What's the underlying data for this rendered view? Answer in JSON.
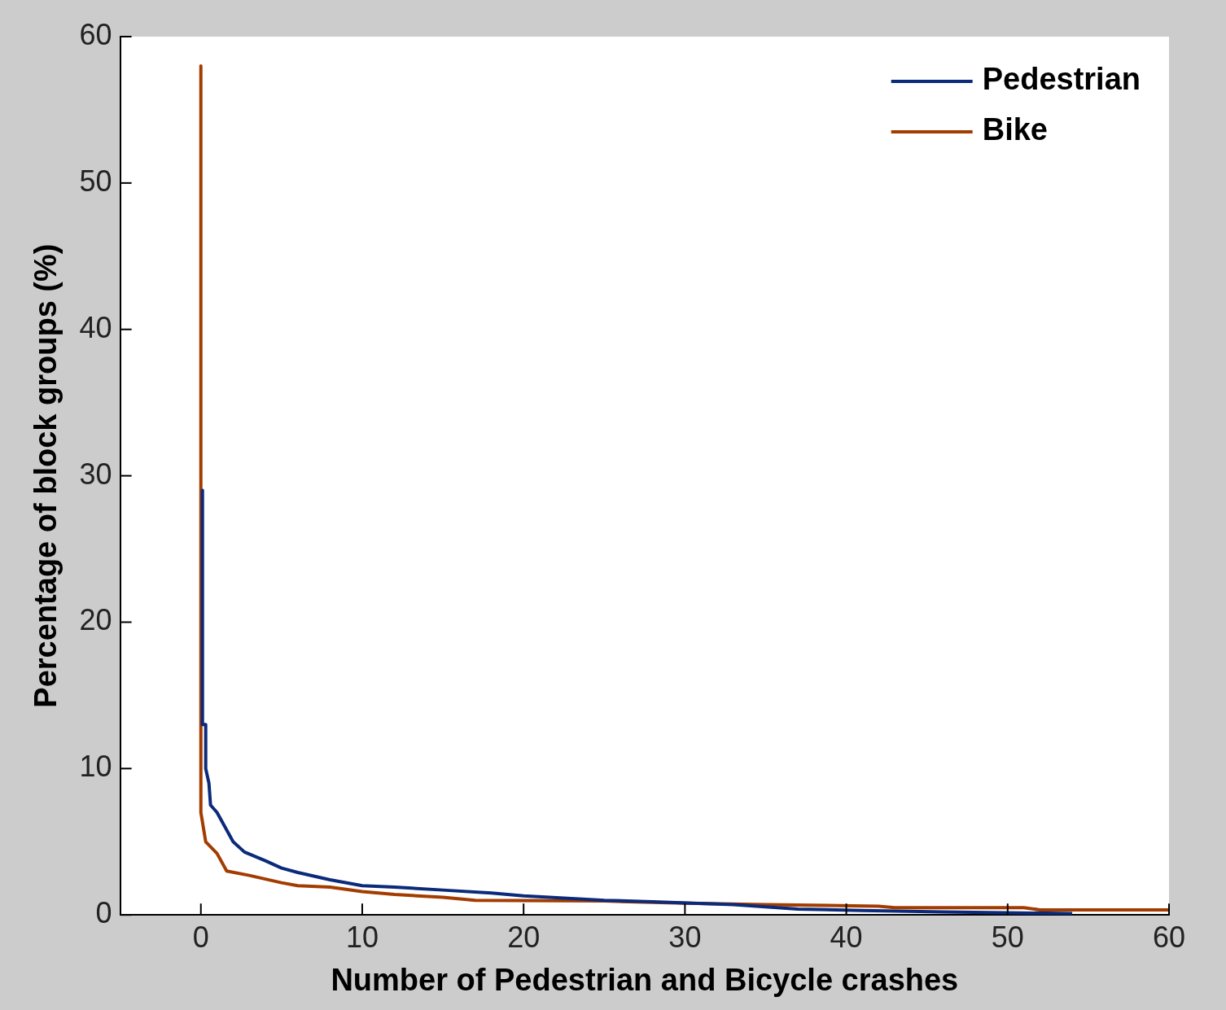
{
  "chart_data": {
    "type": "line",
    "xlabel": "Number of Pedestrian and Bicycle crashes",
    "ylabel": "Percentage of block groups (%)",
    "xlim": [
      -5,
      60
    ],
    "xticks": [
      0,
      10,
      20,
      30,
      40,
      50,
      60
    ],
    "ylim": [
      0,
      60
    ],
    "yticks": [
      0,
      10,
      20,
      30,
      40,
      50,
      60
    ],
    "grid": false,
    "legend": "top right",
    "marker": "none",
    "line_style": "solid",
    "series": [
      {
        "name": "Pedestrian",
        "color": "#0b2a7a",
        "x": [
          0.1,
          0.1,
          0.3,
          0.3,
          0.5,
          0.6,
          1,
          1.5,
          2,
          2.7,
          4,
          5,
          6,
          8,
          10,
          12,
          15,
          18,
          20,
          25,
          28,
          33,
          37,
          41,
          46,
          54
        ],
        "values": [
          29,
          13,
          13,
          10,
          9,
          7.5,
          7,
          6,
          5,
          4.3,
          3.7,
          3.2,
          2.9,
          2.4,
          2,
          1.9,
          1.7,
          1.5,
          1.3,
          1,
          0.9,
          0.7,
          0.4,
          0.3,
          0.2,
          0.1
        ]
      },
      {
        "name": "Bike",
        "color": "#a33c00",
        "x": [
          0,
          0,
          0.3,
          1,
          1.6,
          3,
          5,
          6,
          8,
          10,
          12,
          15,
          17,
          25,
          30,
          35,
          42,
          43,
          51,
          52,
          60
        ],
        "values": [
          58,
          7,
          5,
          4.2,
          3,
          2.7,
          2.2,
          2,
          1.9,
          1.6,
          1.4,
          1.2,
          1,
          0.95,
          0.8,
          0.7,
          0.6,
          0.5,
          0.5,
          0.35,
          0.35
        ]
      }
    ]
  }
}
